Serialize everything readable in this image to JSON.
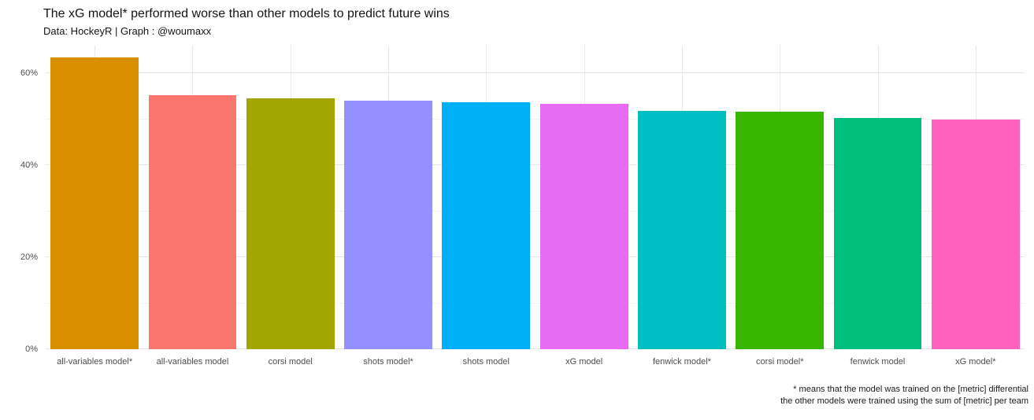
{
  "chart_data": {
    "type": "bar",
    "title": "The xG model* performed worse than other models to predict future wins",
    "subtitle": "Data: HockeyR | Graph : @woumaxx",
    "categories": [
      "all-variables model*",
      "all-variables model",
      "corsi model",
      "shots model*",
      "shots model",
      "xG model",
      "fenwick model*",
      "corsi model*",
      "fenwick model",
      "xG model*"
    ],
    "values": [
      63.4,
      55.3,
      54.5,
      54.0,
      53.7,
      53.4,
      51.8,
      51.7,
      50.2,
      49.9
    ],
    "colors": [
      "#D89000",
      "#F8766D",
      "#A3A500",
      "#9590FF",
      "#00B0F6",
      "#E76BF3",
      "#00BFC4",
      "#39B600",
      "#00BF7D",
      "#FF62BC"
    ],
    "xlabel": "",
    "ylabel": "",
    "ylim": [
      0,
      66
    ],
    "y_ticks": [
      {
        "value": 0,
        "label": "0%"
      },
      {
        "value": 20,
        "label": "20%"
      },
      {
        "value": 40,
        "label": "40%"
      },
      {
        "value": 60,
        "label": "60%"
      }
    ],
    "y_minor_ticks": [
      10,
      30,
      50
    ],
    "grid": true,
    "legend_position": "none",
    "caption_lines": [
      "* means that the model was trained on the [metric] differential",
      "the other models were trained using the sum of [metric] per team"
    ]
  },
  "colors": {
    "background": "#FFFFFF",
    "grid_major": "#E6E6E6",
    "grid_minor": "#F2F2F2",
    "axis_text": "#4D4D4D",
    "title_text": "#141414"
  }
}
